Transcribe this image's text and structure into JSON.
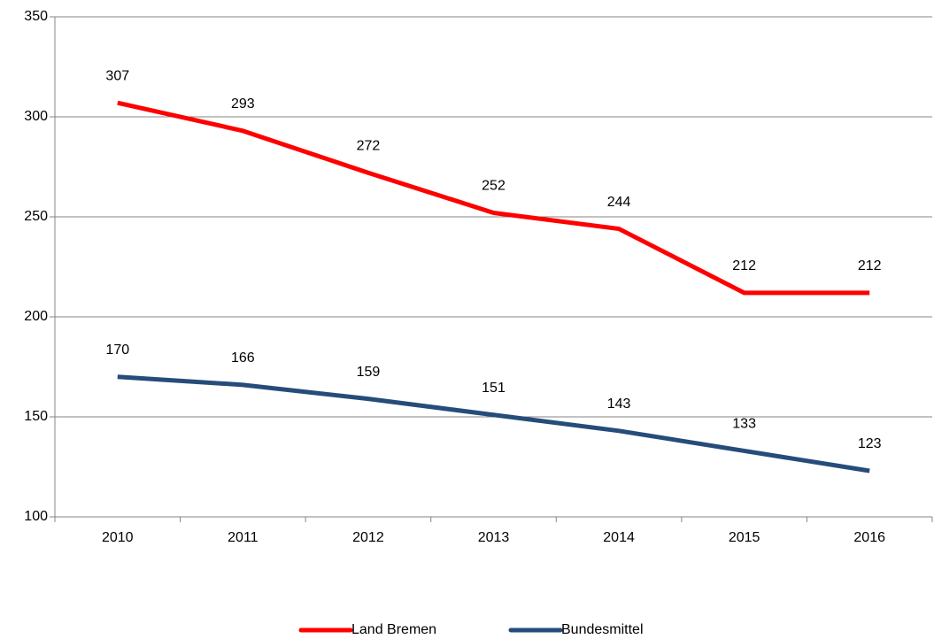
{
  "chart_data": {
    "type": "line",
    "categories": [
      "2010",
      "2011",
      "2012",
      "2013",
      "2014",
      "2015",
      "2016"
    ],
    "series": [
      {
        "name": "Land Bremen",
        "color": "#ff0000",
        "values": [
          307,
          293,
          272,
          252,
          244,
          212,
          212
        ]
      },
      {
        "name": "Bundesmittel",
        "color": "#254c7a",
        "values": [
          170,
          166,
          159,
          151,
          143,
          133,
          123
        ]
      }
    ],
    "ylim": [
      100,
      350
    ],
    "yticks": [
      100,
      150,
      200,
      250,
      300,
      350
    ],
    "grid": true,
    "legend": "bottom"
  }
}
